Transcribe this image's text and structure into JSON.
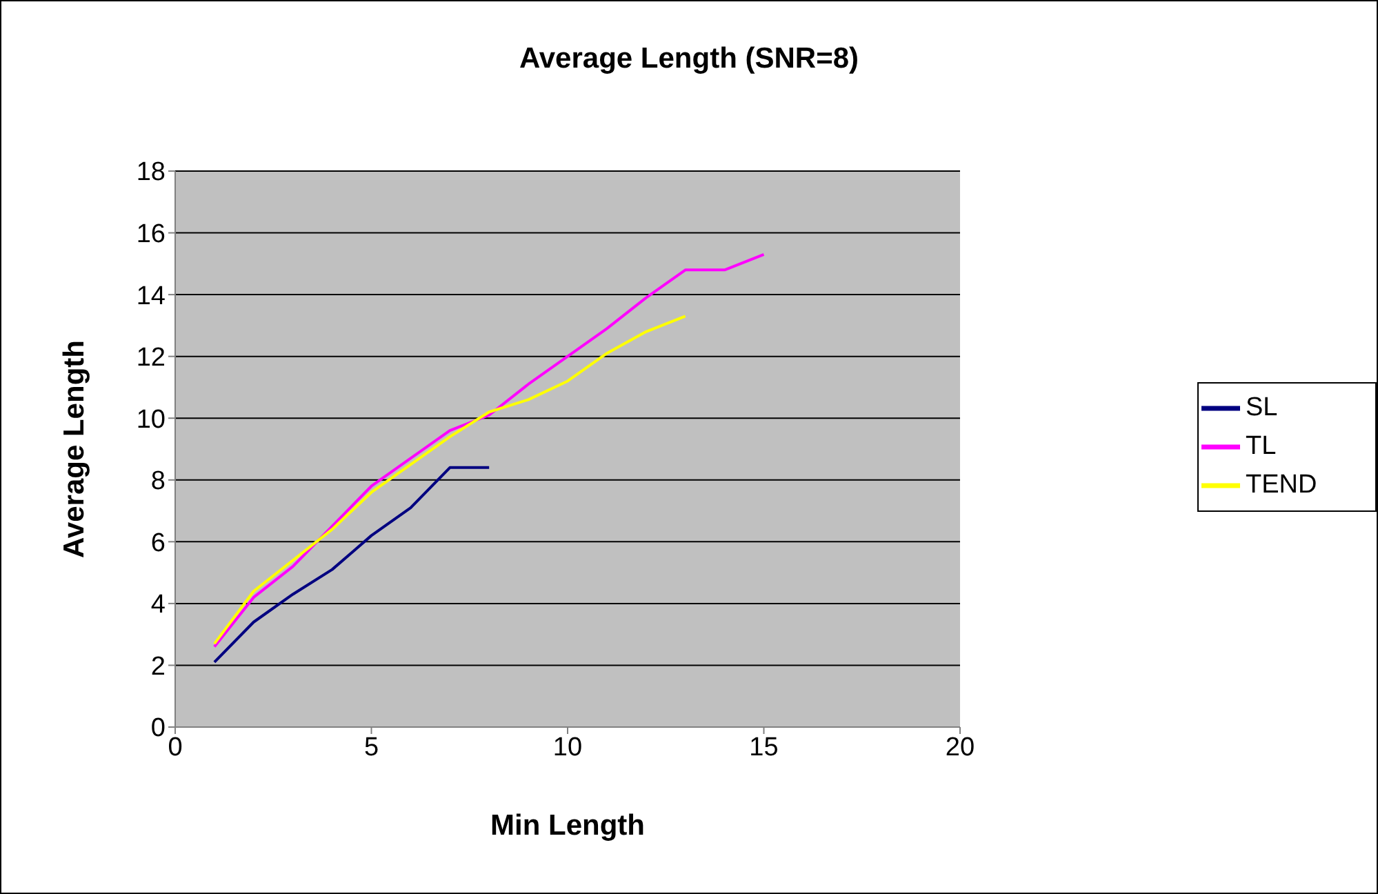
{
  "chart_data": {
    "type": "line",
    "title": "Average Length (SNR=8)",
    "xlabel": "Min Length",
    "ylabel": "Average Length",
    "x": [
      1,
      2,
      3,
      4,
      5,
      6,
      7,
      8,
      9,
      10,
      11,
      12,
      13,
      14,
      15
    ],
    "series": [
      {
        "name": "SL",
        "color": "#000080",
        "values": [
          2.1,
          3.4,
          4.3,
          5.1,
          6.2,
          7.1,
          8.4,
          8.4,
          null,
          null,
          null,
          null,
          null,
          null,
          null
        ]
      },
      {
        "name": "TL",
        "color": "#ff00ff",
        "values": [
          2.6,
          4.2,
          5.2,
          6.5,
          7.8,
          8.7,
          9.6,
          10.1,
          11.1,
          12.0,
          12.9,
          13.9,
          14.8,
          14.8,
          15.3
        ]
      },
      {
        "name": "TEND",
        "color": "#ffff00",
        "values": [
          2.7,
          4.4,
          5.4,
          6.4,
          7.6,
          8.5,
          9.4,
          10.2,
          10.6,
          11.2,
          12.1,
          12.8,
          13.3,
          null,
          null
        ]
      }
    ],
    "xlim": [
      0,
      20
    ],
    "xticks": [
      0,
      5,
      10,
      15,
      20
    ],
    "ylim": [
      0,
      18
    ],
    "yticks": [
      0,
      2,
      4,
      6,
      8,
      10,
      12,
      14,
      16,
      18
    ],
    "grid": "y",
    "legend": "right",
    "marker": "none",
    "line_style": "solid"
  }
}
